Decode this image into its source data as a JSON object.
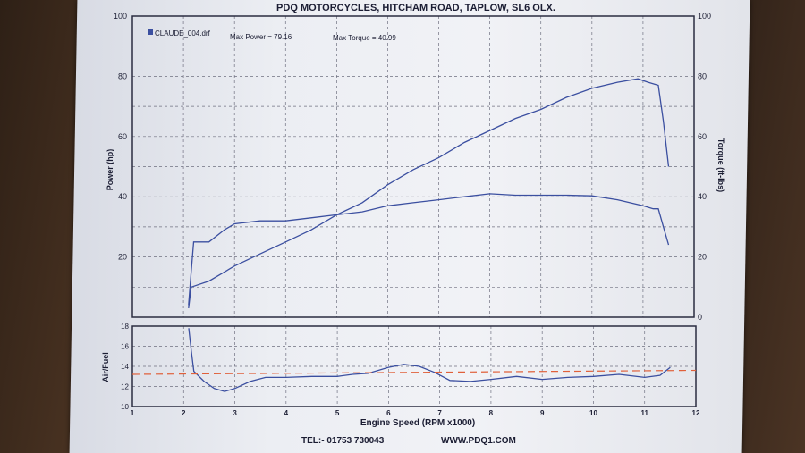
{
  "header": {
    "title": "PDQ MOTORCYCLES, HITCHAM ROAD, TAPLOW, SL6 OLX."
  },
  "footer": {
    "phone": "TEL:- 01753 730043",
    "web": "WWW.PDQ1.COM"
  },
  "legend": {
    "file": "CLAUDE_004.drf",
    "max_power_text": "Max Power = 79.16",
    "max_torque_text": "Max Torque = 40.99"
  },
  "colors": {
    "curve": "#3b4fa0",
    "target": "#e0603a",
    "grid": "#6f7080"
  },
  "chart_data": [
    {
      "type": "line",
      "title": "",
      "xlabel": "",
      "ylabel": "Power (hp)",
      "y2label": "Torque (ft-lbs)",
      "xlim": [
        1,
        12
      ],
      "ylim": [
        0,
        100
      ],
      "y2lim": [
        0,
        100
      ],
      "yticks": [
        20,
        40,
        60,
        80,
        100
      ],
      "y2ticks": [
        0,
        20,
        40,
        60,
        80,
        100
      ],
      "legend_position": "top-left",
      "grid": true,
      "series": [
        {
          "name": "Power",
          "axis": "left",
          "x": [
            2.1,
            2.15,
            2.5,
            3.0,
            3.5,
            4.0,
            4.5,
            5.0,
            5.5,
            6.0,
            6.5,
            7.0,
            7.5,
            8.0,
            8.5,
            9.0,
            9.5,
            10.0,
            10.5,
            10.9,
            11.1,
            11.3,
            11.4,
            11.5
          ],
          "y": [
            3,
            10,
            12,
            17,
            21,
            25,
            29,
            34,
            38,
            44,
            49,
            53,
            58,
            62,
            66,
            69,
            73,
            76,
            78,
            79.16,
            78,
            77,
            65,
            50
          ]
        },
        {
          "name": "Torque",
          "axis": "right",
          "x": [
            2.1,
            2.15,
            2.2,
            2.5,
            2.8,
            3.0,
            3.5,
            4.0,
            4.5,
            5.0,
            5.5,
            6.0,
            6.5,
            7.0,
            7.5,
            8.0,
            8.5,
            9.0,
            9.5,
            10.0,
            10.5,
            11.0,
            11.2,
            11.3,
            11.4,
            11.5
          ],
          "y": [
            4,
            15,
            25,
            25,
            29,
            31,
            32,
            32,
            33,
            34,
            35,
            37,
            38,
            39,
            40,
            40.99,
            40.5,
            40.5,
            40.5,
            40.3,
            39,
            37,
            36,
            36,
            30,
            24
          ]
        }
      ]
    },
    {
      "type": "line",
      "title": "",
      "xlabel": "Engine Speed (RPM x1000)",
      "ylabel": "Air/Fuel",
      "xlim": [
        1,
        12
      ],
      "ylim": [
        10,
        18
      ],
      "yticks": [
        10,
        12,
        14,
        16,
        18
      ],
      "xticks": [
        1,
        2,
        3,
        4,
        5,
        6,
        7,
        8,
        9,
        10,
        11,
        12
      ],
      "grid": true,
      "series": [
        {
          "name": "Air/Fuel",
          "x": [
            2.1,
            2.15,
            2.2,
            2.4,
            2.6,
            2.8,
            3.0,
            3.3,
            3.6,
            4.0,
            4.5,
            5.0,
            5.3,
            5.6,
            6.0,
            6.3,
            6.6,
            6.9,
            7.2,
            7.6,
            8.0,
            8.5,
            9.0,
            9.5,
            10.0,
            10.5,
            11.0,
            11.3,
            11.5
          ],
          "y": [
            17.8,
            15.5,
            13.5,
            12.5,
            11.8,
            11.5,
            11.8,
            12.5,
            12.9,
            12.9,
            13.0,
            13.0,
            13.2,
            13.3,
            13.9,
            14.2,
            14.0,
            13.4,
            12.6,
            12.5,
            12.7,
            13.0,
            12.7,
            12.9,
            13.0,
            13.2,
            12.9,
            13.1,
            13.9
          ]
        },
        {
          "name": "Target",
          "dashed": true,
          "x": [
            1,
            12
          ],
          "y": [
            13.2,
            13.6
          ]
        }
      ]
    }
  ]
}
